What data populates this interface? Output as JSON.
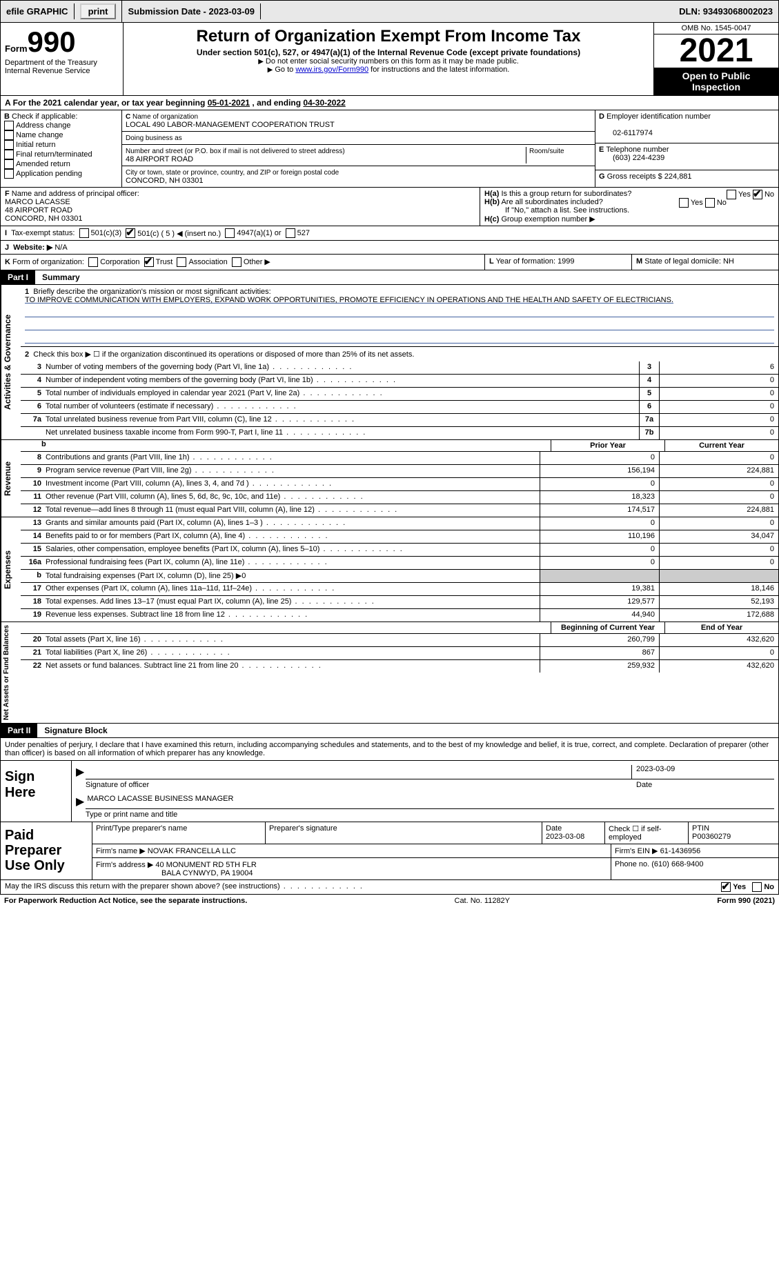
{
  "topbar": {
    "efile": "efile GRAPHIC",
    "print": "print",
    "submission": "Submission Date - 2023-03-09",
    "dln": "DLN: 93493068002023"
  },
  "header": {
    "form_prefix": "Form",
    "form_number": "990",
    "dept": "Department of the Treasury\nInternal Revenue Service",
    "title": "Return of Organization Exempt From Income Tax",
    "subtitle": "Under section 501(c), 527, or 4947(a)(1) of the Internal Revenue Code (except private foundations)",
    "note1": "Do not enter social security numbers on this form as it may be made public.",
    "note2_pre": "Go to ",
    "note2_link": "www.irs.gov/Form990",
    "note2_post": " for instructions and the latest information.",
    "omb": "OMB No. 1545-0047",
    "year": "2021",
    "open": "Open to Public Inspection"
  },
  "period": {
    "text_a": "For the 2021 calendar year, or tax year beginning ",
    "begin": "05-01-2021",
    "text_b": " , and ending ",
    "end": "04-30-2022"
  },
  "box_b": {
    "label": "Check if applicable:",
    "items": [
      "Address change",
      "Name change",
      "Initial return",
      "Final return/terminated",
      "Amended return",
      "Application pending"
    ]
  },
  "box_c": {
    "name_label": "Name of organization",
    "name": "LOCAL 490 LABOR-MANAGEMENT COOPERATION TRUST",
    "dba_label": "Doing business as",
    "dba": "",
    "addr_label": "Number and street (or P.O. box if mail is not delivered to street address)",
    "room_label": "Room/suite",
    "addr": "48 AIRPORT ROAD",
    "city_label": "City or town, state or province, country, and ZIP or foreign postal code",
    "city": "CONCORD, NH  03301"
  },
  "box_d": {
    "ein_label": "Employer identification number",
    "ein": "02-6117974",
    "phone_label": "Telephone number",
    "phone": "(603) 224-4239",
    "gross_label": "Gross receipts $",
    "gross": "224,881"
  },
  "box_f": {
    "label": "Name and address of principal officer:",
    "name": "MARCO LACASSE",
    "addr1": "48 AIRPORT ROAD",
    "addr2": "CONCORD, NH  03301"
  },
  "box_h": {
    "a": "Is this a group return for subordinates?",
    "b": "Are all subordinates included?",
    "b_note": "If \"No,\" attach a list. See instructions.",
    "c": "Group exemption number ▶",
    "yes": "Yes",
    "no": "No"
  },
  "row_i": {
    "label": "Tax-exempt status:",
    "opts": [
      "501(c)(3)",
      "501(c) ( 5 ) ◀ (insert no.)",
      "4947(a)(1) or",
      "527"
    ]
  },
  "row_j": {
    "label": "Website: ▶",
    "val": "N/A"
  },
  "row_k": {
    "label": "Form of organization:",
    "opts": [
      "Corporation",
      "Trust",
      "Association",
      "Other ▶"
    ]
  },
  "row_l": {
    "label": "Year of formation:",
    "val": "1999"
  },
  "row_m": {
    "label": "State of legal domicile:",
    "val": "NH"
  },
  "part1": {
    "num": "Part I",
    "title": "Summary"
  },
  "mission": {
    "num": "1",
    "label": "Briefly describe the organization's mission or most significant activities:",
    "text": "TO IMPROVE COMMUNICATION WITH EMPLOYERS, EXPAND WORK OPPORTUNITIES, PROMOTE EFFICIENCY IN OPERATIONS AND THE HEALTH AND SAFETY OF ELECTRICIANS."
  },
  "line2": {
    "num": "2",
    "text": "Check this box ▶ ☐ if the organization discontinued its operations or disposed of more than 25% of its net assets."
  },
  "tabs": {
    "activities": "Activities & Governance",
    "revenue": "Revenue",
    "expenses": "Expenses",
    "net": "Net Assets or Fund Balances"
  },
  "heads": {
    "prior": "Prior Year",
    "current": "Current Year",
    "begin": "Beginning of Current Year",
    "end": "End of Year"
  },
  "lines_ag": [
    {
      "n": "3",
      "d": "Number of voting members of the governing body (Part VI, line 1a)",
      "box": "3",
      "v": "6"
    },
    {
      "n": "4",
      "d": "Number of independent voting members of the governing body (Part VI, line 1b)",
      "box": "4",
      "v": "0"
    },
    {
      "n": "5",
      "d": "Total number of individuals employed in calendar year 2021 (Part V, line 2a)",
      "box": "5",
      "v": "0"
    },
    {
      "n": "6",
      "d": "Total number of volunteers (estimate if necessary)",
      "box": "6",
      "v": "0"
    },
    {
      "n": "7a",
      "d": "Total unrelated business revenue from Part VIII, column (C), line 12",
      "box": "7a",
      "v": "0"
    },
    {
      "n": "",
      "d": "Net unrelated business taxable income from Form 990-T, Part I, line 11",
      "box": "7b",
      "v": "0"
    }
  ],
  "lines_rev": [
    {
      "n": "8",
      "d": "Contributions and grants (Part VIII, line 1h)",
      "p": "0",
      "c": "0"
    },
    {
      "n": "9",
      "d": "Program service revenue (Part VIII, line 2g)",
      "p": "156,194",
      "c": "224,881"
    },
    {
      "n": "10",
      "d": "Investment income (Part VIII, column (A), lines 3, 4, and 7d )",
      "p": "0",
      "c": "0"
    },
    {
      "n": "11",
      "d": "Other revenue (Part VIII, column (A), lines 5, 6d, 8c, 9c, 10c, and 11e)",
      "p": "18,323",
      "c": "0"
    },
    {
      "n": "12",
      "d": "Total revenue—add lines 8 through 11 (must equal Part VIII, column (A), line 12)",
      "p": "174,517",
      "c": "224,881"
    }
  ],
  "lines_exp": [
    {
      "n": "13",
      "d": "Grants and similar amounts paid (Part IX, column (A), lines 1–3 )",
      "p": "0",
      "c": "0"
    },
    {
      "n": "14",
      "d": "Benefits paid to or for members (Part IX, column (A), line 4)",
      "p": "110,196",
      "c": "34,047"
    },
    {
      "n": "15",
      "d": "Salaries, other compensation, employee benefits (Part IX, column (A), lines 5–10)",
      "p": "0",
      "c": "0"
    },
    {
      "n": "16a",
      "d": "Professional fundraising fees (Part IX, column (A), line 11e)",
      "p": "0",
      "c": "0"
    },
    {
      "n": "b",
      "d": "Total fundraising expenses (Part IX, column (D), line 25) ▶0",
      "p": "",
      "c": "",
      "shade": true
    },
    {
      "n": "17",
      "d": "Other expenses (Part IX, column (A), lines 11a–11d, 11f–24e)",
      "p": "19,381",
      "c": "18,146"
    },
    {
      "n": "18",
      "d": "Total expenses. Add lines 13–17 (must equal Part IX, column (A), line 25)",
      "p": "129,577",
      "c": "52,193"
    },
    {
      "n": "19",
      "d": "Revenue less expenses. Subtract line 18 from line 12",
      "p": "44,940",
      "c": "172,688"
    }
  ],
  "lines_net": [
    {
      "n": "20",
      "d": "Total assets (Part X, line 16)",
      "p": "260,799",
      "c": "432,620"
    },
    {
      "n": "21",
      "d": "Total liabilities (Part X, line 26)",
      "p": "867",
      "c": "0"
    },
    {
      "n": "22",
      "d": "Net assets or fund balances. Subtract line 21 from line 20",
      "p": "259,932",
      "c": "432,620"
    }
  ],
  "part2": {
    "num": "Part II",
    "title": "Signature Block"
  },
  "penalty": "Under penalties of perjury, I declare that I have examined this return, including accompanying schedules and statements, and to the best of my knowledge and belief, it is true, correct, and complete. Declaration of preparer (other than officer) is based on all information of which preparer has any knowledge.",
  "sign": {
    "label": "Sign Here",
    "sig_label": "Signature of officer",
    "date_label": "Date",
    "date": "2023-03-09",
    "name": "MARCO LACASSE BUSINESS MANAGER",
    "name_label": "Type or print name and title"
  },
  "paid": {
    "label": "Paid Preparer Use Only",
    "h1": "Print/Type preparer's name",
    "h2": "Preparer's signature",
    "h3": "Date",
    "date": "2023-03-08",
    "h4": "Check ☐ if self-employed",
    "h5": "PTIN",
    "ptin": "P00360279",
    "firm_label": "Firm's name    ▶",
    "firm": "NOVAK FRANCELLA LLC",
    "ein_label": "Firm's EIN ▶",
    "ein": "61-1436956",
    "addr_label": "Firm's address ▶",
    "addr1": "40 MONUMENT RD 5TH FLR",
    "addr2": "BALA CYNWYD, PA  19004",
    "phone_label": "Phone no.",
    "phone": "(610) 668-9400"
  },
  "discuss": {
    "text": "May the IRS discuss this return with the preparer shown above? (see instructions)",
    "yes": "Yes",
    "no": "No"
  },
  "footer": {
    "left": "For Paperwork Reduction Act Notice, see the separate instructions.",
    "center": "Cat. No. 11282Y",
    "right": "Form 990 (2021)"
  }
}
